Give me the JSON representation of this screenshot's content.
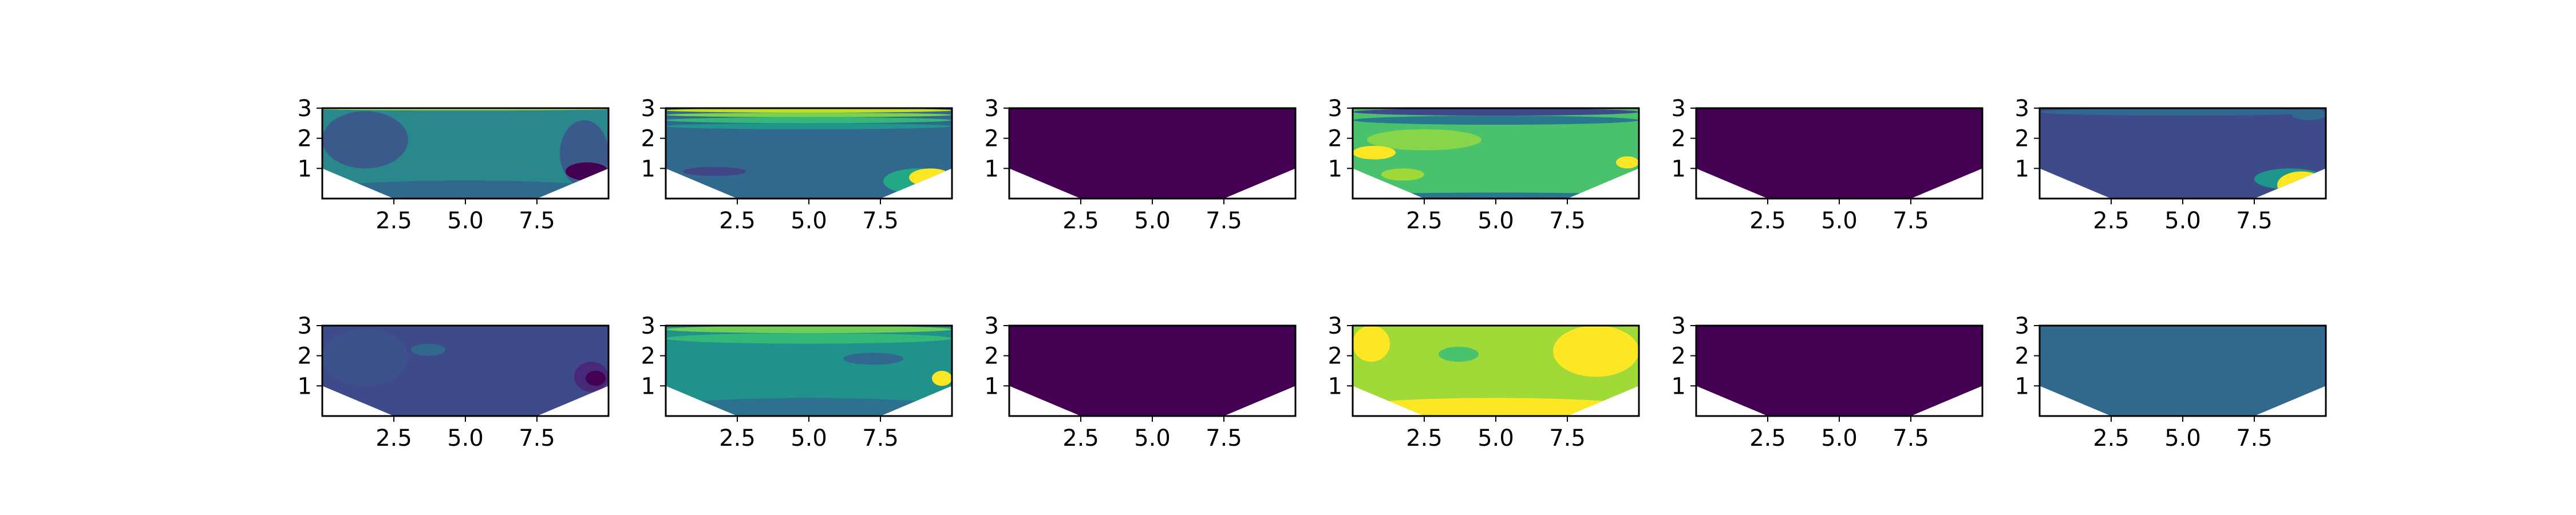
{
  "chart_data": {
    "type": "heatmap",
    "layout": {
      "rows": 2,
      "cols": 6
    },
    "xlim": [
      0,
      10
    ],
    "ylim": [
      0,
      3
    ],
    "xticks": [
      2.5,
      5.0,
      7.5
    ],
    "xtick_labels": [
      "2.5",
      "5.0",
      "7.5"
    ],
    "yticks": [
      1,
      2,
      3
    ],
    "ytick_labels": [
      "1",
      "2",
      "3"
    ],
    "domain_shape": "trapezoid: full width y 1-3, narrowing to x 2.5-7.5 at y 0",
    "colormap": "viridis",
    "grid": false,
    "legend": "none",
    "panels": [
      {
        "row": 1,
        "col": 1,
        "base_color": "#2a888d",
        "regions": [
          {
            "color": "#d2e21b",
            "x": [
              0,
              10
            ],
            "y": [
              2.93,
              3.0
            ]
          },
          {
            "color": "#3b5a8c",
            "x": [
              0,
              3
            ],
            "y": [
              1.0,
              2.9
            ]
          },
          {
            "color": "#30698e",
            "x": [
              0,
              10
            ],
            "y": [
              0.0,
              0.6
            ]
          },
          {
            "color": "#3b5a8c",
            "x": [
              8.3,
              10
            ],
            "y": [
              0.4,
              2.6
            ]
          },
          {
            "color": "#440154",
            "x": [
              8.5,
              10
            ],
            "y": [
              0.6,
              1.2
            ]
          }
        ]
      },
      {
        "row": 1,
        "col": 2,
        "base_color": "#31688e",
        "regions": [
          {
            "color": "#c0df25",
            "x": [
              0,
              10
            ],
            "y": [
              2.85,
              3.0
            ]
          },
          {
            "color": "#7ad151",
            "x": [
              0,
              10
            ],
            "y": [
              2.7,
              2.85
            ]
          },
          {
            "color": "#35b779",
            "x": [
              0,
              10
            ],
            "y": [
              2.5,
              2.7
            ]
          },
          {
            "color": "#1f968b",
            "x": [
              0,
              10
            ],
            "y": [
              2.3,
              2.5
            ]
          },
          {
            "color": "#414487",
            "x": [
              0.6,
              2.8
            ],
            "y": [
              0.75,
              1.05
            ]
          },
          {
            "color": "#22a884",
            "x": [
              7.6,
              10
            ],
            "y": [
              0.15,
              1.0
            ]
          },
          {
            "color": "#fde725",
            "x": [
              8.5,
              10
            ],
            "y": [
              0.4,
              1.0
            ]
          }
        ]
      },
      {
        "row": 1,
        "col": 3,
        "base_color": "#440154",
        "regions": []
      },
      {
        "row": 1,
        "col": 4,
        "base_color": "#4ac16d",
        "regions": [
          {
            "color": "#3e4a89",
            "x": [
              0,
              10
            ],
            "y": [
              2.75,
              3.0
            ]
          },
          {
            "color": "#2a788e",
            "x": [
              0,
              10
            ],
            "y": [
              2.45,
              2.75
            ]
          },
          {
            "color": "#87d549",
            "x": [
              0.5,
              4.5
            ],
            "y": [
              1.6,
              2.3
            ]
          },
          {
            "color": "#fde725",
            "x": [
              0,
              1.5
            ],
            "y": [
              1.3,
              1.75
            ]
          },
          {
            "color": "#a0da39",
            "x": [
              1.0,
              2.5
            ],
            "y": [
              0.6,
              1.0
            ]
          },
          {
            "color": "#2a788e",
            "x": [
              0,
              10
            ],
            "y": [
              0.0,
              0.2
            ]
          },
          {
            "color": "#fde725",
            "x": [
              9.2,
              10
            ],
            "y": [
              1.0,
              1.4
            ]
          }
        ]
      },
      {
        "row": 1,
        "col": 5,
        "base_color": "#440154",
        "regions": []
      },
      {
        "row": 1,
        "col": 6,
        "base_color": "#3e4a89",
        "regions": [
          {
            "color": "#31688e",
            "x": [
              0,
              10
            ],
            "y": [
              2.75,
              3.0
            ]
          },
          {
            "color": "#31688e",
            "x": [
              8.8,
              10
            ],
            "y": [
              2.6,
              3.0
            ]
          },
          {
            "color": "#1f968b",
            "x": [
              7.5,
              10
            ],
            "y": [
              0.3,
              1.0
            ]
          },
          {
            "color": "#fde725",
            "x": [
              8.3,
              10
            ],
            "y": [
              0.0,
              0.9
            ]
          }
        ]
      },
      {
        "row": 2,
        "col": 1,
        "base_color": "#3e4a89",
        "regions": [
          {
            "color": "#3b528b",
            "x": [
              0,
              3
            ],
            "y": [
              1.0,
              2.9
            ]
          },
          {
            "color": "#31688e",
            "x": [
              3.1,
              4.3
            ],
            "y": [
              2.0,
              2.4
            ]
          },
          {
            "color": "#482878",
            "x": [
              8.8,
              10
            ],
            "y": [
              0.8,
              1.8
            ]
          },
          {
            "color": "#440154",
            "x": [
              9.2,
              9.9
            ],
            "y": [
              1.0,
              1.5
            ]
          }
        ]
      },
      {
        "row": 2,
        "col": 2,
        "base_color": "#21918c",
        "regions": [
          {
            "color": "#6ece58",
            "x": [
              0,
              10
            ],
            "y": [
              2.75,
              3.0
            ]
          },
          {
            "color": "#35b779",
            "x": [
              0,
              10
            ],
            "y": [
              2.4,
              2.75
            ]
          },
          {
            "color": "#31688e",
            "x": [
              6.2,
              8.3
            ],
            "y": [
              1.7,
              2.1
            ]
          },
          {
            "color": "#2c728e",
            "x": [
              0,
              10
            ],
            "y": [
              0.0,
              0.6
            ]
          },
          {
            "color": "#fde725",
            "x": [
              9.3,
              10
            ],
            "y": [
              1.0,
              1.5
            ]
          }
        ]
      },
      {
        "row": 2,
        "col": 3,
        "base_color": "#440154",
        "regions": []
      },
      {
        "row": 2,
        "col": 4,
        "base_color": "#a0da39",
        "regions": [
          {
            "color": "#fde725",
            "x": [
              0,
              1.3
            ],
            "y": [
              1.8,
              3.0
            ]
          },
          {
            "color": "#fde725",
            "x": [
              7.0,
              10
            ],
            "y": [
              1.3,
              3.0
            ]
          },
          {
            "color": "#4ac16d",
            "x": [
              3.0,
              4.4
            ],
            "y": [
              1.8,
              2.3
            ]
          },
          {
            "color": "#fde725",
            "x": [
              0,
              10
            ],
            "y": [
              0.0,
              0.6
            ]
          }
        ]
      },
      {
        "row": 2,
        "col": 5,
        "base_color": "#440154",
        "regions": []
      },
      {
        "row": 2,
        "col": 6,
        "base_color": "#31688e",
        "regions": []
      }
    ]
  }
}
